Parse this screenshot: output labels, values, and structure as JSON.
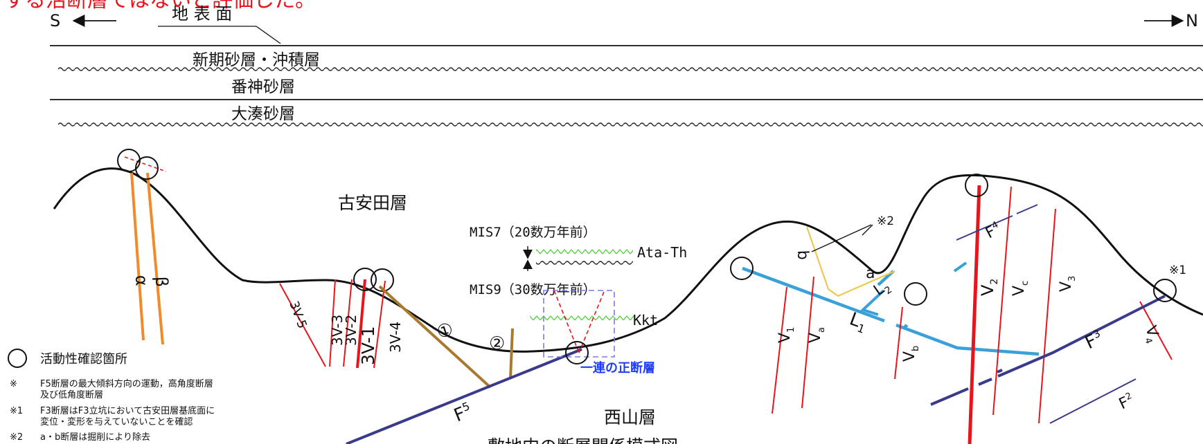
{
  "header_note": "する活断層ではないと評価した。",
  "direction": {
    "south": "S",
    "north": "N"
  },
  "layers": {
    "surface": "地 表 面",
    "newer_sand": "新期砂層・沖積層",
    "banjin_sand": "番神砂層",
    "ominato_sand": "大湊砂層"
  },
  "formations": {
    "furuyasuda": "古安田層",
    "nishiyama": "西山層"
  },
  "markers": {
    "mis7": "MIS7（20数万年前）",
    "mis9": "MIS9（30数万年前）",
    "ata_th": "Ata-Th",
    "kkt": "Kkt",
    "normal_fault_series": "一連の正断層"
  },
  "faults": {
    "alpha": "α",
    "beta": "β",
    "v3_5": "3V-5",
    "v3_3": "3V-3",
    "v3_2": "3V-2",
    "v3_1": "3V-1",
    "v3_4": "3V-4",
    "c1": "①",
    "c2": "②",
    "f5": "F",
    "f5_sub": "5",
    "v1": "V",
    "v1_sub": "1",
    "va": "V",
    "va_sub": "a",
    "l1": "L",
    "l1_sub": "1",
    "vb": "V",
    "vb_sub": "b",
    "l2": "L",
    "l2_sub": "2",
    "v2": "V",
    "v2_sub": "2",
    "vc": "V",
    "vc_sub": "c",
    "v3": "V",
    "v3_sub": "3",
    "f4": "F",
    "f4_sub": "4",
    "f3": "F",
    "f3_sub": "3",
    "v4": "V",
    "v4_sub": "4",
    "f2": "F",
    "f2_sub": "2",
    "a": "a",
    "b": "b",
    "note1_mark": "※1",
    "note2_mark": "※2"
  },
  "legend": {
    "circle_label": "活動性確認箇所",
    "n0_mark": "※",
    "n0_line1": "F5断層の最大傾斜方向の運動，高角度断層",
    "n0_line2": "及び低角度断層",
    "n1_mark": "※1",
    "n1_line1": "F3断層はF3立坑において古安田層基底面に",
    "n1_line2": "変位・変形を与えていないことを確認",
    "n2_mark": "※2",
    "n2_line1": "a・b断層は掘削により除去"
  },
  "caption": "敷地内の断層関係模式図",
  "colors": {
    "red_fault": "#e8141c",
    "orange_fault": "#f08a2a",
    "brown_fault": "#a87a2e",
    "yellow_fault": "#f0c850",
    "navy_fault": "#3a3a8c",
    "blue_fault": "#3aa0d8",
    "tephra_green": "#4fcf3a",
    "dashed_box": "#7a7ae6"
  }
}
